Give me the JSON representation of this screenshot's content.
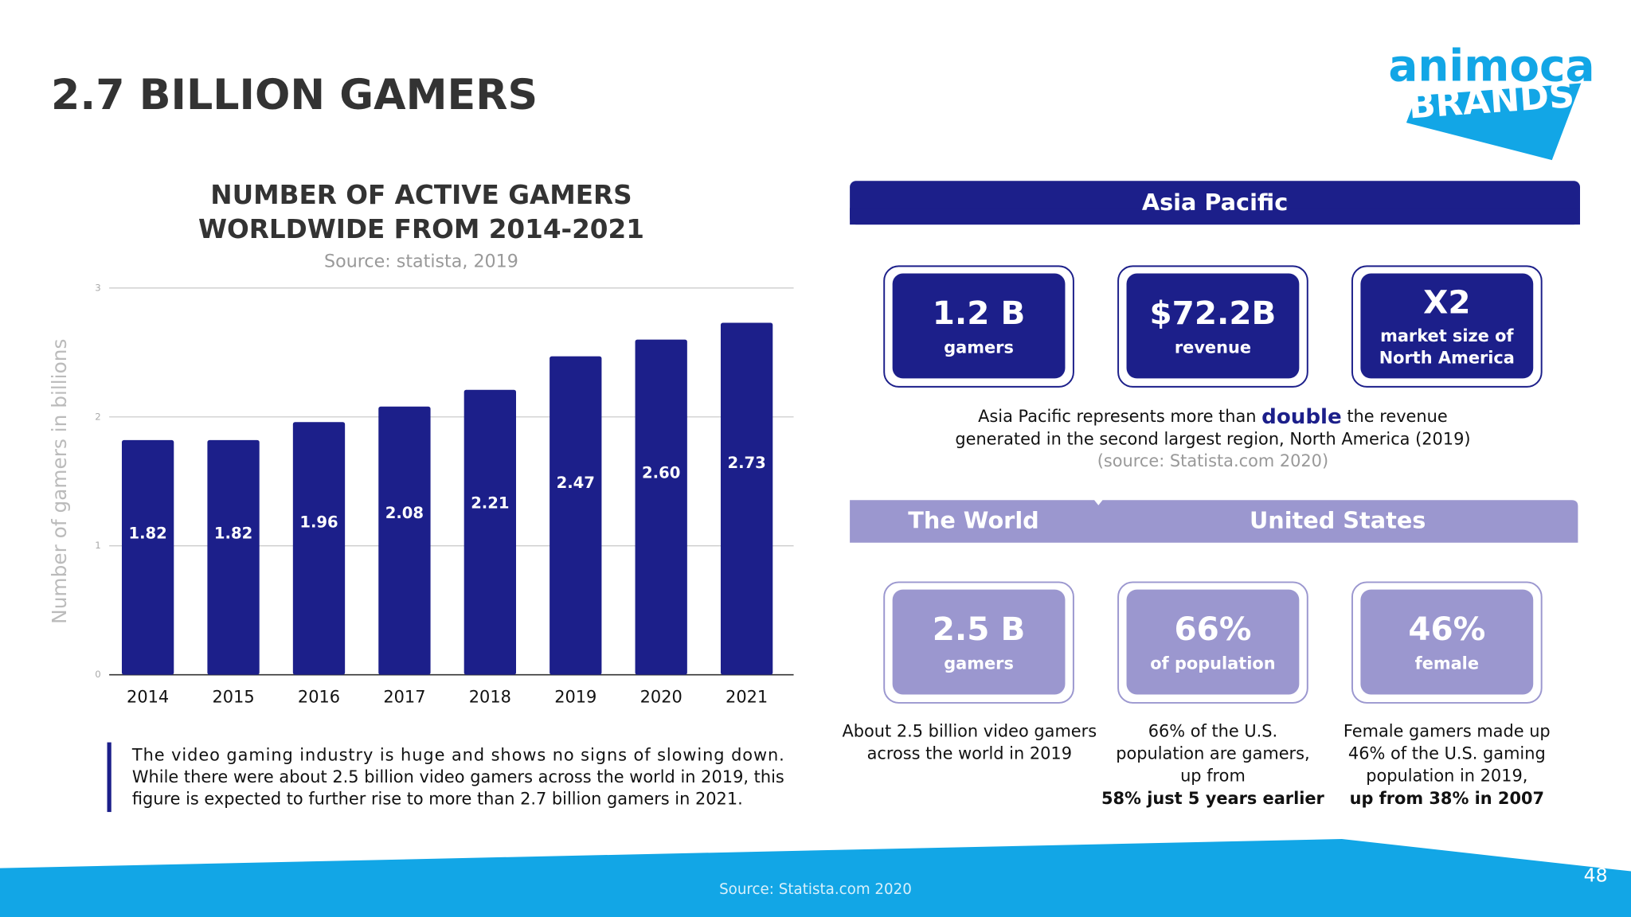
{
  "header": {
    "title": "2.7 BILLION GAMERS"
  },
  "logo": {
    "line1": "animoca",
    "line2": "BRANDS"
  },
  "chart_data": {
    "type": "bar",
    "title": [
      "NUMBER OF ACTIVE GAMERS",
      "WORLDWIDE FROM 2014-2021"
    ],
    "subtitle": "Source: statista, 2019",
    "y_label": "Number of gamers in billions",
    "categories": [
      "2014",
      "2015",
      "2016",
      "2017",
      "2018",
      "2019",
      "2020",
      "2021"
    ],
    "values": [
      1.82,
      1.82,
      1.96,
      2.08,
      2.21,
      2.47,
      2.6,
      2.73
    ],
    "value_labels": [
      "1.82",
      "1.82",
      "1.96",
      "2.08",
      "2.21",
      "2.47",
      "2.60",
      "2.73"
    ],
    "color": "#1c1f8a",
    "ylim": [
      0,
      3
    ],
    "yticks": [
      0,
      1,
      2,
      3
    ],
    "grid": true
  },
  "description": [
    "The video gaming industry is huge and shows no signs of slowing down.",
    "While there were about 2.5 billion video gamers across the world in 2019, this",
    "figure is expected to further rise to more than 2.7 billion gamers in 2021."
  ],
  "asia_pacific": {
    "header": "Asia Pacific",
    "cards": [
      {
        "value": "1.2 B",
        "label": [
          "gamers"
        ]
      },
      {
        "value": "$72.2B",
        "label": [
          "revenue"
        ]
      },
      {
        "value": "X2",
        "label": [
          "market size of",
          "North America"
        ]
      }
    ],
    "note": [
      "Asia Pacific represents more than",
      "double",
      "the revenue",
      "generated in the second largest region, North America (2019)",
      "(source: Statista.com 2020)"
    ]
  },
  "regions": {
    "headers": [
      "The World",
      "United States"
    ],
    "cards": [
      {
        "value": "2.5 B",
        "label": "gamers",
        "caption": [
          "About 2.5 billion video gamers",
          "across the world in 2019"
        ],
        "caption_bold": null
      },
      {
        "value": "66%",
        "label": "of  population",
        "caption": [
          "66% of the U.S.",
          "population are gamers,",
          "up from"
        ],
        "caption_bold": "58% just 5 years earlier"
      },
      {
        "value": "46%",
        "label": "female",
        "caption": [
          "Female gamers made up",
          "46% of the U.S. gaming",
          "population in 2019,"
        ],
        "caption_bold": "up from 38% in 2007"
      }
    ]
  },
  "footer": {
    "source": "Source: Statista.com 2020",
    "page_number": "48"
  }
}
